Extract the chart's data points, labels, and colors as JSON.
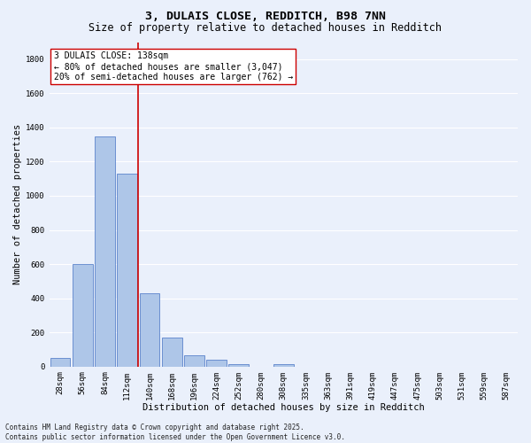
{
  "title1": "3, DULAIS CLOSE, REDDITCH, B98 7NN",
  "title2": "Size of property relative to detached houses in Redditch",
  "xlabel": "Distribution of detached houses by size in Redditch",
  "ylabel": "Number of detached properties",
  "bins": [
    "28sqm",
    "56sqm",
    "84sqm",
    "112sqm",
    "140sqm",
    "168sqm",
    "196sqm",
    "224sqm",
    "252sqm",
    "280sqm",
    "308sqm",
    "335sqm",
    "363sqm",
    "391sqm",
    "419sqm",
    "447sqm",
    "475sqm",
    "503sqm",
    "531sqm",
    "559sqm",
    "587sqm"
  ],
  "bar_heights": [
    50,
    600,
    1350,
    1130,
    430,
    170,
    65,
    38,
    15,
    0,
    15,
    0,
    0,
    0,
    0,
    0,
    0,
    0,
    0,
    0,
    0
  ],
  "bar_color": "#aec6e8",
  "bar_edge_color": "#4472c4",
  "background_color": "#eaf0fb",
  "grid_color": "#ffffff",
  "vline_color": "#cc0000",
  "annotation_text": "3 DULAIS CLOSE: 138sqm\n← 80% of detached houses are smaller (3,047)\n20% of semi-detached houses are larger (762) →",
  "annotation_box_color": "#ffffff",
  "annotation_box_edge": "#cc0000",
  "ylim": [
    0,
    1900
  ],
  "yticks": [
    0,
    200,
    400,
    600,
    800,
    1000,
    1200,
    1400,
    1600,
    1800
  ],
  "footer": "Contains HM Land Registry data © Crown copyright and database right 2025.\nContains public sector information licensed under the Open Government Licence v3.0.",
  "title_fontsize": 9.5,
  "subtitle_fontsize": 8.5,
  "axis_label_fontsize": 7.5,
  "tick_fontsize": 6.5,
  "annotation_fontsize": 7.0,
  "footer_fontsize": 5.5
}
